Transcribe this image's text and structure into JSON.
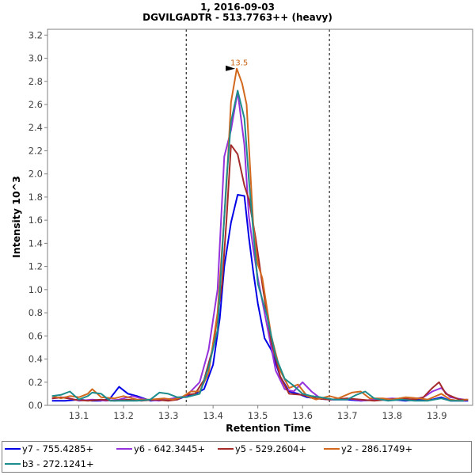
{
  "chart_data": {
    "type": "line",
    "title": "1, 2016-09-03",
    "subtitle": "DGVILGADTR - 513.7763++ (heavy)",
    "xlabel": "Retention Time",
    "ylabel": "Intensity 10^3",
    "xlim": [
      13.03,
      13.98
    ],
    "ylim": [
      0,
      3.25
    ],
    "xticks": [
      "13.1",
      "13.2",
      "13.3",
      "13.4",
      "13.5",
      "13.6",
      "13.7",
      "13.8",
      "13.9"
    ],
    "yticks": [
      "0.0",
      "0.2",
      "0.4",
      "0.6",
      "0.8",
      "1.0",
      "1.2",
      "1.4",
      "1.6",
      "1.8",
      "2.0",
      "2.2",
      "2.4",
      "2.6",
      "2.8",
      "3.0",
      "3.2"
    ],
    "boundaries": [
      13.34,
      13.66
    ],
    "peak_annotation": {
      "label": "13.5",
      "x": 13.453,
      "y": 2.91,
      "color": "#c86414"
    },
    "series": [
      {
        "name": "y7 - 755.4285+",
        "color": "#0000e6",
        "points": [
          [
            13.04,
            0.04
          ],
          [
            13.07,
            0.04
          ],
          [
            13.1,
            0.05
          ],
          [
            13.13,
            0.04
          ],
          [
            13.15,
            0.04
          ],
          [
            13.17,
            0.06
          ],
          [
            13.19,
            0.16
          ],
          [
            13.21,
            0.1
          ],
          [
            13.23,
            0.08
          ],
          [
            13.26,
            0.04
          ],
          [
            13.29,
            0.05
          ],
          [
            13.32,
            0.05
          ],
          [
            13.34,
            0.08
          ],
          [
            13.36,
            0.1
          ],
          [
            13.38,
            0.14
          ],
          [
            13.4,
            0.35
          ],
          [
            13.415,
            0.75
          ],
          [
            13.425,
            1.2
          ],
          [
            13.44,
            1.58
          ],
          [
            13.455,
            1.82
          ],
          [
            13.47,
            1.81
          ],
          [
            13.48,
            1.45
          ],
          [
            13.49,
            1.15
          ],
          [
            13.5,
            0.88
          ],
          [
            13.515,
            0.58
          ],
          [
            13.53,
            0.48
          ],
          [
            13.55,
            0.25
          ],
          [
            13.57,
            0.12
          ],
          [
            13.59,
            0.1
          ],
          [
            13.61,
            0.07
          ],
          [
            13.63,
            0.06
          ],
          [
            13.66,
            0.05
          ],
          [
            13.7,
            0.05
          ],
          [
            13.73,
            0.04
          ],
          [
            13.77,
            0.05
          ],
          [
            13.8,
            0.05
          ],
          [
            13.83,
            0.04
          ],
          [
            13.86,
            0.05
          ],
          [
            13.89,
            0.05
          ],
          [
            13.91,
            0.07
          ],
          [
            13.93,
            0.04
          ],
          [
            13.97,
            0.04
          ]
        ]
      },
      {
        "name": "y6 - 642.3445+",
        "color": "#9632dc",
        "points": [
          [
            13.04,
            0.06
          ],
          [
            13.07,
            0.07
          ],
          [
            13.1,
            0.04
          ],
          [
            13.13,
            0.05
          ],
          [
            13.16,
            0.04
          ],
          [
            13.19,
            0.05
          ],
          [
            13.22,
            0.08
          ],
          [
            13.25,
            0.05
          ],
          [
            13.28,
            0.04
          ],
          [
            13.31,
            0.06
          ],
          [
            13.34,
            0.08
          ],
          [
            13.37,
            0.2
          ],
          [
            13.39,
            0.48
          ],
          [
            13.41,
            1.0
          ],
          [
            13.425,
            2.15
          ],
          [
            13.44,
            2.38
          ],
          [
            13.455,
            2.71
          ],
          [
            13.47,
            2.25
          ],
          [
            13.48,
            1.63
          ],
          [
            13.49,
            1.35
          ],
          [
            13.5,
            1.1
          ],
          [
            13.52,
            0.7
          ],
          [
            13.54,
            0.3
          ],
          [
            13.56,
            0.14
          ],
          [
            13.58,
            0.12
          ],
          [
            13.6,
            0.2
          ],
          [
            13.62,
            0.12
          ],
          [
            13.64,
            0.06
          ],
          [
            13.67,
            0.05
          ],
          [
            13.7,
            0.06
          ],
          [
            13.73,
            0.04
          ],
          [
            13.76,
            0.05
          ],
          [
            13.8,
            0.06
          ],
          [
            13.84,
            0.05
          ],
          [
            13.87,
            0.07
          ],
          [
            13.89,
            0.12
          ],
          [
            13.91,
            0.15
          ],
          [
            13.93,
            0.07
          ],
          [
            13.96,
            0.05
          ]
        ]
      },
      {
        "name": "y5 - 529.2604+",
        "color": "#a52a2a",
        "points": [
          [
            13.04,
            0.06
          ],
          [
            13.06,
            0.07
          ],
          [
            13.09,
            0.05
          ],
          [
            13.12,
            0.04
          ],
          [
            13.15,
            0.05
          ],
          [
            13.18,
            0.04
          ],
          [
            13.21,
            0.05
          ],
          [
            13.24,
            0.04
          ],
          [
            13.27,
            0.05
          ],
          [
            13.3,
            0.04
          ],
          [
            13.32,
            0.05
          ],
          [
            13.34,
            0.09
          ],
          [
            13.36,
            0.1
          ],
          [
            13.38,
            0.22
          ],
          [
            13.4,
            0.5
          ],
          [
            13.42,
            1.05
          ],
          [
            13.43,
            1.6
          ],
          [
            13.44,
            2.25
          ],
          [
            13.455,
            2.17
          ],
          [
            13.47,
            1.9
          ],
          [
            13.48,
            1.78
          ],
          [
            13.495,
            1.45
          ],
          [
            13.51,
            1.05
          ],
          [
            13.53,
            0.55
          ],
          [
            13.55,
            0.25
          ],
          [
            13.57,
            0.1
          ],
          [
            13.6,
            0.09
          ],
          [
            13.63,
            0.06
          ],
          [
            13.66,
            0.05
          ],
          [
            13.7,
            0.06
          ],
          [
            13.73,
            0.05
          ],
          [
            13.76,
            0.04
          ],
          [
            13.79,
            0.05
          ],
          [
            13.82,
            0.06
          ],
          [
            13.85,
            0.05
          ],
          [
            13.87,
            0.07
          ],
          [
            13.89,
            0.15
          ],
          [
            13.905,
            0.2
          ],
          [
            13.92,
            0.1
          ],
          [
            13.95,
            0.05
          ],
          [
            13.97,
            0.05
          ]
        ]
      },
      {
        "name": "y2 - 286.1749+",
        "color": "#d2691e",
        "points": [
          [
            13.04,
            0.08
          ],
          [
            13.06,
            0.06
          ],
          [
            13.08,
            0.08
          ],
          [
            13.1,
            0.07
          ],
          [
            13.12,
            0.1
          ],
          [
            13.13,
            0.14
          ],
          [
            13.15,
            0.07
          ],
          [
            13.18,
            0.06
          ],
          [
            13.2,
            0.08
          ],
          [
            13.23,
            0.05
          ],
          [
            13.26,
            0.05
          ],
          [
            13.29,
            0.06
          ],
          [
            13.31,
            0.05
          ],
          [
            13.33,
            0.07
          ],
          [
            13.35,
            0.12
          ],
          [
            13.37,
            0.12
          ],
          [
            13.39,
            0.28
          ],
          [
            13.41,
            0.8
          ],
          [
            13.43,
            1.9
          ],
          [
            13.44,
            2.62
          ],
          [
            13.453,
            2.91
          ],
          [
            13.465,
            2.78
          ],
          [
            13.475,
            2.6
          ],
          [
            13.49,
            1.55
          ],
          [
            13.5,
            1.22
          ],
          [
            13.51,
            1.1
          ],
          [
            13.53,
            0.6
          ],
          [
            13.55,
            0.3
          ],
          [
            13.57,
            0.15
          ],
          [
            13.59,
            0.18
          ],
          [
            13.61,
            0.08
          ],
          [
            13.63,
            0.05
          ],
          [
            13.66,
            0.08
          ],
          [
            13.68,
            0.06
          ],
          [
            13.71,
            0.11
          ],
          [
            13.73,
            0.12
          ],
          [
            13.75,
            0.06
          ],
          [
            13.78,
            0.06
          ],
          [
            13.8,
            0.05
          ],
          [
            13.83,
            0.07
          ],
          [
            13.86,
            0.06
          ],
          [
            13.88,
            0.05
          ],
          [
            13.91,
            0.1
          ],
          [
            13.93,
            0.05
          ],
          [
            13.95,
            0.04
          ],
          [
            13.97,
            0.05
          ]
        ]
      },
      {
        "name": "b3 - 272.1241+",
        "color": "#1e8c8c",
        "points": [
          [
            13.04,
            0.08
          ],
          [
            13.06,
            0.09
          ],
          [
            13.08,
            0.12
          ],
          [
            13.1,
            0.05
          ],
          [
            13.12,
            0.08
          ],
          [
            13.13,
            0.11
          ],
          [
            13.15,
            0.1
          ],
          [
            13.17,
            0.04
          ],
          [
            13.2,
            0.04
          ],
          [
            13.23,
            0.04
          ],
          [
            13.26,
            0.05
          ],
          [
            13.28,
            0.11
          ],
          [
            13.3,
            0.1
          ],
          [
            13.32,
            0.07
          ],
          [
            13.34,
            0.07
          ],
          [
            13.37,
            0.1
          ],
          [
            13.39,
            0.33
          ],
          [
            13.41,
            0.65
          ],
          [
            13.43,
            1.95
          ],
          [
            13.44,
            2.45
          ],
          [
            13.455,
            2.72
          ],
          [
            13.47,
            2.48
          ],
          [
            13.48,
            1.95
          ],
          [
            13.49,
            1.5
          ],
          [
            13.5,
            1.05
          ],
          [
            13.52,
            0.78
          ],
          [
            13.54,
            0.42
          ],
          [
            13.56,
            0.23
          ],
          [
            13.58,
            0.17
          ],
          [
            13.6,
            0.1
          ],
          [
            13.62,
            0.08
          ],
          [
            13.64,
            0.07
          ],
          [
            13.67,
            0.05
          ],
          [
            13.7,
            0.05
          ],
          [
            13.72,
            0.09
          ],
          [
            13.74,
            0.12
          ],
          [
            13.76,
            0.06
          ],
          [
            13.79,
            0.04
          ],
          [
            13.82,
            0.05
          ],
          [
            13.85,
            0.04
          ],
          [
            13.88,
            0.04
          ],
          [
            13.91,
            0.06
          ],
          [
            13.93,
            0.04
          ],
          [
            13.96,
            0.04
          ]
        ]
      }
    ]
  }
}
